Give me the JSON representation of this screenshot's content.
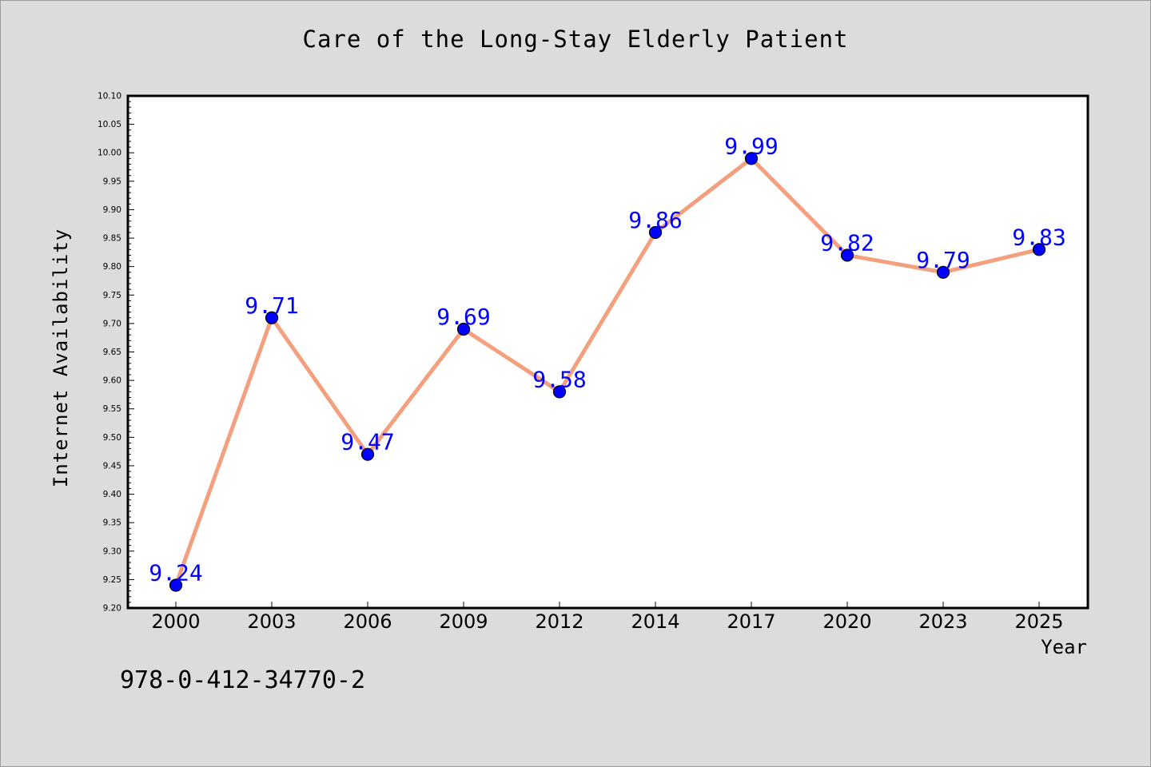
{
  "chart_data": {
    "type": "line",
    "title": "Care of the Long-Stay Elderly Patient",
    "xlabel": "Year",
    "ylabel": "Internet Availability",
    "categories": [
      "2000",
      "2003",
      "2006",
      "2009",
      "2012",
      "2014",
      "2017",
      "2020",
      "2023",
      "2025"
    ],
    "series": [
      {
        "values": [
          9.24,
          9.71,
          9.47,
          9.69,
          9.58,
          9.86,
          9.99,
          9.82,
          9.79,
          9.83
        ],
        "data_labels": [
          "9.24",
          "9.71",
          "9.47",
          "9.69",
          "9.58",
          "9.86",
          "9.99",
          "9.82",
          "9.79",
          "9.83"
        ]
      }
    ],
    "ylim": [
      9.2,
      10.1
    ],
    "yticks": [
      "9.20",
      "9.25",
      "9.30",
      "9.35",
      "9.40",
      "9.45",
      "9.50",
      "9.55",
      "9.60",
      "9.65",
      "9.70",
      "9.75",
      "9.80",
      "9.85",
      "9.90",
      "9.95",
      "10.00",
      "10.05",
      "10.10"
    ],
    "grid": false,
    "legend": "none",
    "colors": {
      "line": "#f4a07f",
      "marker": "#0000ff",
      "marker_edge": "#000000",
      "data_label": "#0000ff",
      "plot_bg": "#ffffff",
      "figure_bg": "#dcdcdc"
    }
  },
  "footer": {
    "isbn": "978-0-412-34770-2"
  }
}
